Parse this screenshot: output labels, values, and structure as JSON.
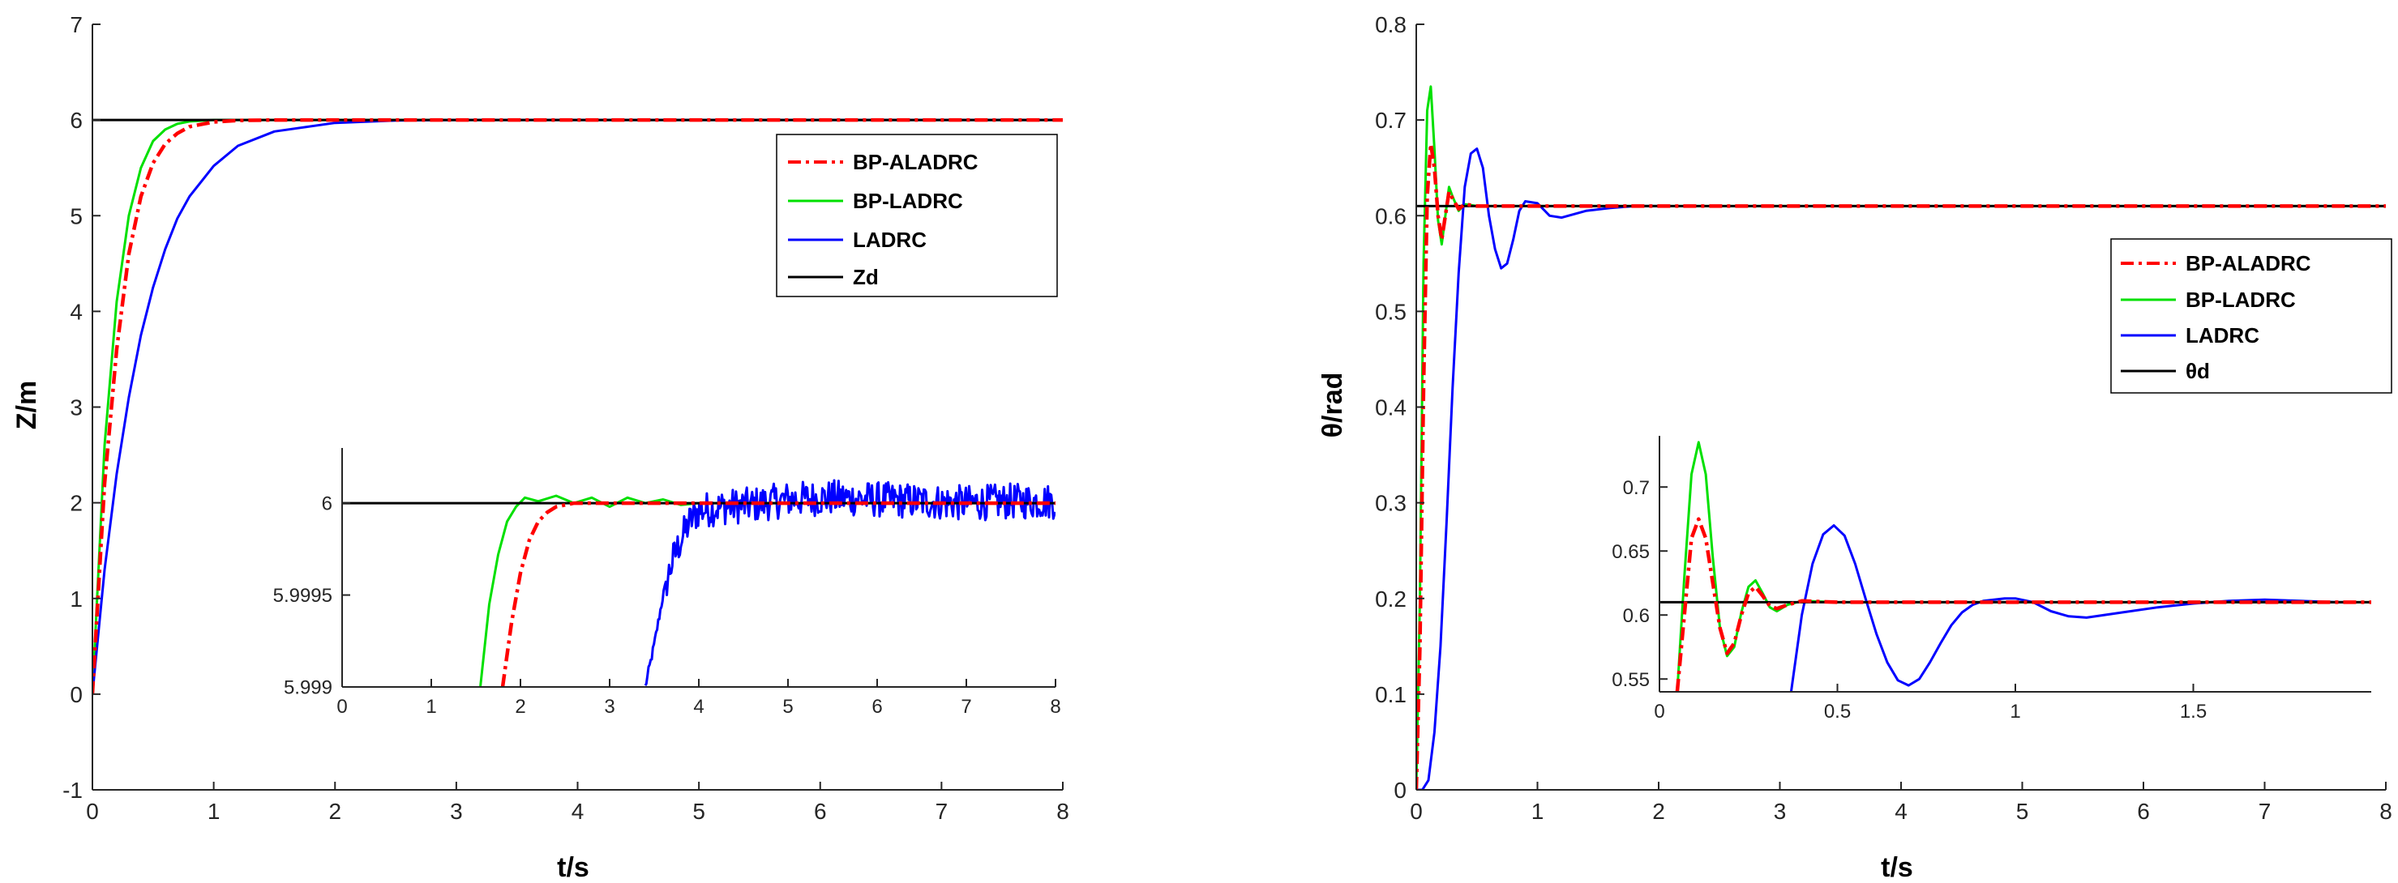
{
  "chart_data": [
    {
      "type": "line",
      "id": "left-main",
      "xlabel": "t/s",
      "ylabel": "Z/m",
      "xlim": [
        0,
        8
      ],
      "ylim": [
        -1,
        7
      ],
      "xticks": [
        "0",
        "1",
        "2",
        "3",
        "4",
        "5",
        "6",
        "7",
        "8"
      ],
      "yticks": [
        "-1",
        "0",
        "1",
        "2",
        "3",
        "4",
        "5",
        "6",
        "7"
      ],
      "grid": false,
      "legend": "upper-right",
      "series": [
        {
          "name": "BP-ALADRC",
          "color": "#ff0000",
          "style": "dashdot",
          "x": [
            0,
            0.1,
            0.2,
            0.3,
            0.4,
            0.5,
            0.6,
            0.7,
            0.8,
            1.0,
            1.2,
            1.5,
            2,
            8
          ],
          "y": [
            0,
            2.2,
            3.6,
            4.6,
            5.2,
            5.55,
            5.75,
            5.86,
            5.93,
            5.98,
            5.995,
            6.0,
            6.0,
            6.0
          ]
        },
        {
          "name": "BP-LADRC",
          "color": "#00e000",
          "style": "solid",
          "x": [
            0,
            0.1,
            0.2,
            0.3,
            0.4,
            0.5,
            0.6,
            0.7,
            0.8,
            1.0,
            1.2,
            8
          ],
          "y": [
            0,
            2.6,
            4.1,
            5.0,
            5.5,
            5.78,
            5.9,
            5.96,
            5.985,
            6.0,
            6.0,
            6.0
          ]
        },
        {
          "name": "LADRC",
          "color": "#0000ff",
          "style": "solid",
          "x": [
            0,
            0.1,
            0.2,
            0.3,
            0.4,
            0.5,
            0.6,
            0.7,
            0.8,
            1.0,
            1.2,
            1.5,
            2.0,
            2.5,
            3,
            8
          ],
          "y": [
            0,
            1.3,
            2.3,
            3.1,
            3.75,
            4.25,
            4.65,
            4.97,
            5.2,
            5.52,
            5.73,
            5.88,
            5.97,
            5.995,
            6.0,
            6.0
          ]
        },
        {
          "name": "Zd",
          "color": "#000000",
          "style": "solid",
          "x": [
            0,
            8
          ],
          "y": [
            6,
            6
          ]
        }
      ]
    },
    {
      "type": "line",
      "id": "left-inset",
      "xlim": [
        0,
        8
      ],
      "ylim": [
        5.999,
        6.0003
      ],
      "xticks": [
        "0",
        "1",
        "2",
        "3",
        "4",
        "5",
        "6",
        "7",
        "8"
      ],
      "yticks": [
        "5.999",
        "5.9995",
        "6"
      ],
      "series": [
        {
          "name": "BP-ALADRC",
          "color": "#ff0000",
          "style": "dashdot",
          "x": [
            1.8,
            1.9,
            2.0,
            2.1,
            2.2,
            2.3,
            2.4,
            2.6,
            3,
            8
          ],
          "y": [
            5.999,
            5.99935,
            5.99962,
            5.9998,
            5.9999,
            5.99995,
            5.99998,
            6.0,
            6.0,
            6.0
          ]
        },
        {
          "name": "BP-LADRC",
          "color": "#00e000",
          "style": "solid",
          "x": [
            1.55,
            1.65,
            1.75,
            1.85,
            1.95,
            2.05,
            2.2,
            2.4,
            2.6,
            2.8,
            3.0,
            3.2,
            3.4,
            3.6,
            3.8,
            4.0,
            8
          ],
          "y": [
            5.999,
            5.99945,
            5.99972,
            5.9999,
            5.99998,
            6.00003,
            6.00001,
            6.00004,
            6.0,
            6.00003,
            5.99998,
            6.00003,
            6.0,
            6.00002,
            5.99999,
            6.0,
            6.0
          ]
        },
        {
          "name": "LADRC",
          "color": "#0000ff",
          "style": "noisy",
          "x": [
            3.4,
            3.5,
            3.6,
            3.7,
            3.8,
            3.9,
            4.0,
            4.3,
            4.6,
            5.0,
            5.5,
            6.0,
            6.5,
            7.0,
            7.5,
            8.0
          ],
          "y": [
            5.999,
            5.99923,
            5.9995,
            5.99968,
            5.9998,
            5.9999,
            5.99996,
            5.99998,
            5.99999,
            6.00002,
            6.00003,
            6.00002,
            6.00001,
            6.0,
            6.00001,
            6.00001
          ]
        },
        {
          "name": "Zd",
          "color": "#000000",
          "style": "solid",
          "x": [
            0,
            8
          ],
          "y": [
            6,
            6
          ]
        }
      ]
    },
    {
      "type": "line",
      "id": "right-main",
      "xlabel": "t/s",
      "ylabel": "θ/rad",
      "xlim": [
        0,
        8
      ],
      "ylim": [
        0,
        0.8
      ],
      "xticks": [
        "0",
        "1",
        "2",
        "3",
        "4",
        "5",
        "6",
        "7",
        "8"
      ],
      "yticks": [
        "0",
        "0.1",
        "0.2",
        "0.3",
        "0.4",
        "0.5",
        "0.6",
        "0.7",
        "0.8"
      ],
      "grid": false,
      "legend": "right",
      "series": [
        {
          "name": "BP-ALADRC",
          "color": "#ff0000",
          "style": "dashdot",
          "x": [
            0,
            0.03,
            0.06,
            0.09,
            0.12,
            0.15,
            0.18,
            0.21,
            0.24,
            0.27,
            0.3,
            0.35,
            0.4,
            0.5,
            8
          ],
          "y": [
            0,
            0.15,
            0.42,
            0.62,
            0.675,
            0.65,
            0.6,
            0.575,
            0.6,
            0.625,
            0.618,
            0.607,
            0.612,
            0.61,
            0.61
          ]
        },
        {
          "name": "BP-LADRC",
          "color": "#00e000",
          "style": "solid",
          "x": [
            0,
            0.03,
            0.06,
            0.09,
            0.12,
            0.15,
            0.18,
            0.21,
            0.24,
            0.27,
            0.3,
            0.35,
            0.4,
            0.5,
            8
          ],
          "y": [
            0,
            0.2,
            0.55,
            0.71,
            0.735,
            0.67,
            0.595,
            0.57,
            0.6,
            0.63,
            0.62,
            0.605,
            0.612,
            0.61,
            0.61
          ]
        },
        {
          "name": "LADRC",
          "color": "#0000ff",
          "style": "solid",
          "x": [
            0,
            0.05,
            0.1,
            0.15,
            0.2,
            0.25,
            0.3,
            0.35,
            0.4,
            0.45,
            0.5,
            0.55,
            0.6,
            0.65,
            0.7,
            0.75,
            0.8,
            0.85,
            0.9,
            1.0,
            1.1,
            1.2,
            1.4,
            1.6,
            1.8,
            2.0
          ],
          "y": [
            0,
            0.0,
            0.01,
            0.06,
            0.15,
            0.28,
            0.42,
            0.54,
            0.63,
            0.665,
            0.67,
            0.65,
            0.6,
            0.565,
            0.545,
            0.55,
            0.575,
            0.605,
            0.615,
            0.613,
            0.6,
            0.598,
            0.605,
            0.608,
            0.61,
            0.61
          ]
        },
        {
          "name": "θd",
          "color": "#000000",
          "style": "solid",
          "x": [
            0,
            8
          ],
          "y": [
            0.61,
            0.61
          ]
        }
      ]
    },
    {
      "type": "line",
      "id": "right-inset",
      "xlim": [
        0,
        2
      ],
      "ylim": [
        0.54,
        0.74
      ],
      "xticks": [
        "0",
        "0.5",
        "1",
        "1.5"
      ],
      "yticks": [
        "0.55",
        "0.6",
        "0.65",
        "0.7"
      ],
      "series": [
        {
          "name": "BP-ALADRC",
          "color": "#ff0000",
          "style": "dashdot",
          "x": [
            0.05,
            0.07,
            0.09,
            0.11,
            0.13,
            0.15,
            0.17,
            0.19,
            0.21,
            0.23,
            0.25,
            0.27,
            0.29,
            0.31,
            0.33,
            0.36,
            0.4,
            0.5,
            2
          ],
          "y": [
            0.54,
            0.6,
            0.66,
            0.675,
            0.66,
            0.625,
            0.59,
            0.57,
            0.578,
            0.6,
            0.617,
            0.622,
            0.615,
            0.607,
            0.605,
            0.608,
            0.611,
            0.61,
            0.61
          ]
        },
        {
          "name": "BP-LADRC",
          "color": "#00e000",
          "style": "solid",
          "x": [
            0.05,
            0.07,
            0.09,
            0.11,
            0.13,
            0.15,
            0.17,
            0.19,
            0.21,
            0.23,
            0.25,
            0.27,
            0.29,
            0.31,
            0.33,
            0.36,
            0.4,
            0.5,
            2
          ],
          "y": [
            0.54,
            0.63,
            0.71,
            0.735,
            0.71,
            0.645,
            0.59,
            0.568,
            0.575,
            0.602,
            0.622,
            0.627,
            0.617,
            0.606,
            0.603,
            0.608,
            0.611,
            0.61,
            0.61
          ]
        },
        {
          "name": "LADRC",
          "color": "#0000ff",
          "style": "solid",
          "x": [
            0.37,
            0.4,
            0.43,
            0.46,
            0.49,
            0.52,
            0.55,
            0.58,
            0.61,
            0.64,
            0.67,
            0.7,
            0.73,
            0.76,
            0.79,
            0.82,
            0.85,
            0.88,
            0.91,
            0.94,
            0.97,
            1.0,
            1.05,
            1.1,
            1.15,
            1.2,
            1.3,
            1.4,
            1.5,
            1.6,
            1.7,
            1.8,
            1.9,
            1.95
          ],
          "y": [
            0.54,
            0.6,
            0.64,
            0.663,
            0.67,
            0.662,
            0.64,
            0.612,
            0.585,
            0.563,
            0.549,
            0.545,
            0.55,
            0.563,
            0.578,
            0.592,
            0.602,
            0.608,
            0.611,
            0.612,
            0.613,
            0.613,
            0.61,
            0.603,
            0.599,
            0.598,
            0.602,
            0.606,
            0.609,
            0.611,
            0.612,
            0.611,
            0.61,
            0.61
          ]
        },
        {
          "name": "θd",
          "color": "#000000",
          "style": "solid",
          "x": [
            0,
            2
          ],
          "y": [
            0.61,
            0.61
          ]
        }
      ]
    }
  ]
}
